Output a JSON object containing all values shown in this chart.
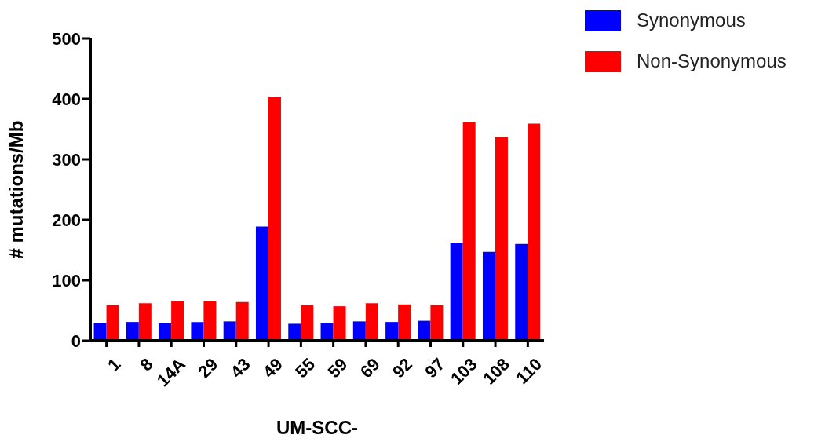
{
  "chart_data": {
    "type": "bar",
    "xlabel": "UM-SCC-",
    "ylabel": "# mutations/Mb",
    "categories": [
      "1",
      "8",
      "14A",
      "29",
      "43",
      "49",
      "55",
      "59",
      "69",
      "92",
      "97",
      "103",
      "108",
      "110"
    ],
    "series": [
      {
        "name": "Synonymous",
        "color": "#0000ff",
        "values": [
          29,
          31,
          29,
          31,
          32,
          189,
          28,
          29,
          32,
          31,
          33,
          161,
          147,
          160
        ]
      },
      {
        "name": "Non-Synonymous",
        "color": "#ff0000",
        "values": [
          59,
          62,
          66,
          65,
          64,
          404,
          59,
          57,
          62,
          60,
          59,
          361,
          337,
          359
        ]
      }
    ],
    "ylim": [
      0,
      500
    ],
    "yticks": [
      0,
      100,
      200,
      300,
      400,
      500
    ],
    "grid": false,
    "legend": "top right"
  }
}
